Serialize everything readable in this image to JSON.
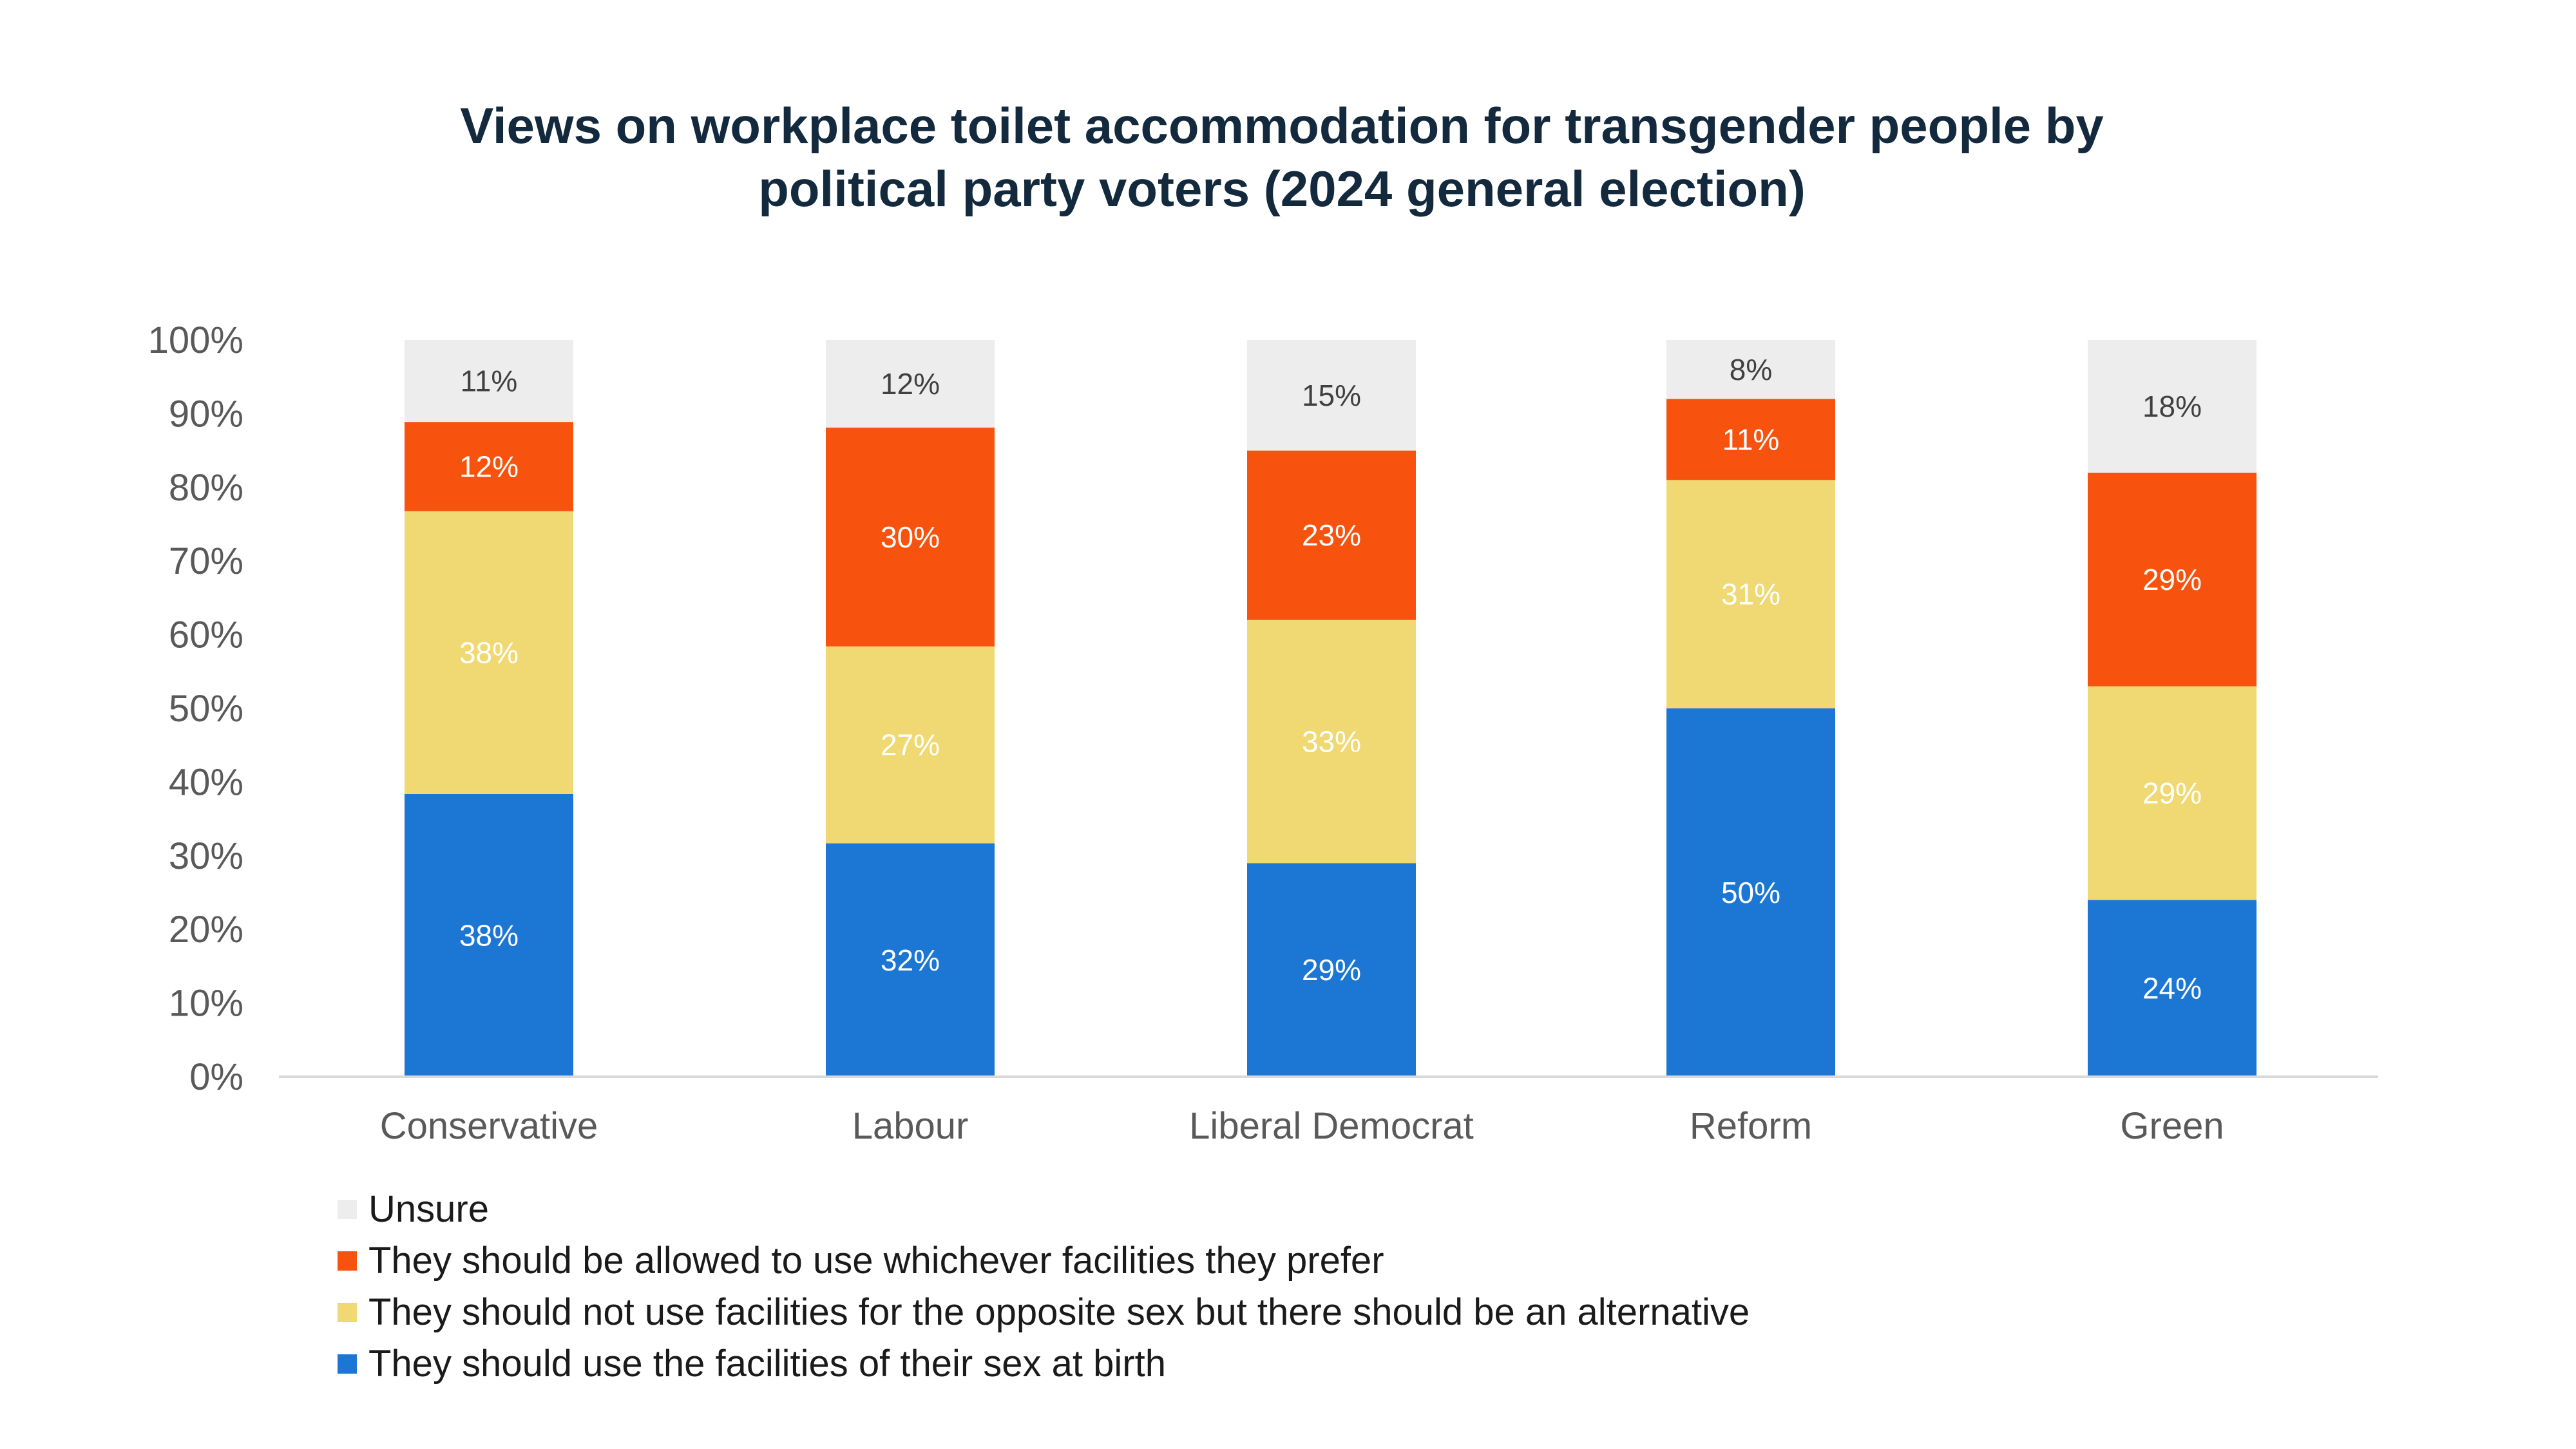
{
  "chart_data": {
    "type": "bar",
    "stacked": true,
    "percent_stacked": true,
    "title": "Views on workplace toilet accommodation for transgender people by political party voters (2024 general election)",
    "title_lines": [
      "Views on workplace toilet accommodation for transgender people by",
      "political party voters (2024 general election)"
    ],
    "xlabel": "",
    "ylabel": "",
    "ylim": [
      0,
      100
    ],
    "yticks": [
      "0%",
      "10%",
      "20%",
      "30%",
      "40%",
      "50%",
      "60%",
      "70%",
      "80%",
      "90%",
      "100%"
    ],
    "categories": [
      "Conservative",
      "Labour",
      "Liberal Democrat",
      "Reform",
      "Green"
    ],
    "series": [
      {
        "name": "They should use the facilities of their sex at birth",
        "color": "#1c77d4",
        "label_color": "#ffffff",
        "values": [
          38,
          32,
          29,
          50,
          24
        ]
      },
      {
        "name": "They should not use facilities for the opposite sex but there should be an alternative",
        "color": "#f0d972",
        "label_color": "#ffffff",
        "values": [
          38,
          27,
          33,
          31,
          29
        ]
      },
      {
        "name": "They should be allowed to use whichever facilities they prefer",
        "color": "#f7530f",
        "label_color": "#ffffff",
        "values": [
          12,
          30,
          23,
          11,
          29
        ]
      },
      {
        "name": "Unsure",
        "color": "#ededed",
        "label_color": "#404040",
        "values": [
          11,
          12,
          15,
          8,
          18
        ]
      }
    ],
    "legend_order": [
      3,
      2,
      1,
      0
    ],
    "legend_position": "bottom-left",
    "grid": false
  }
}
